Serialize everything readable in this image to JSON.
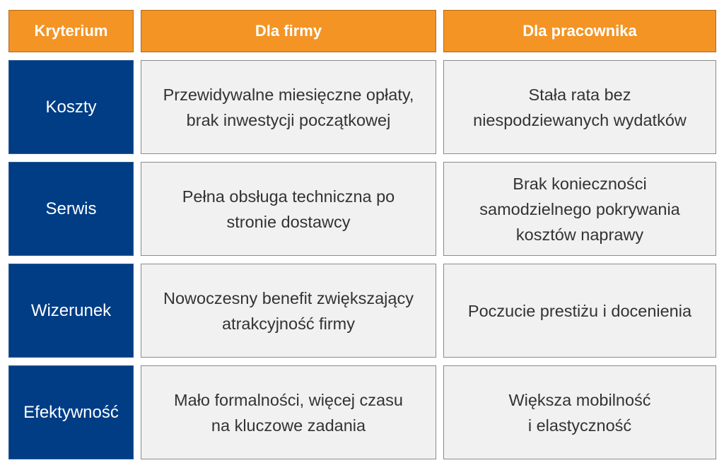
{
  "table": {
    "headers": [
      "Kryterium",
      "Dla firmy",
      "Dla pracownika"
    ],
    "rows": [
      {
        "criterion": "Koszty",
        "company": "Przewidywalne miesięczne opłaty,\nbrak inwestycji początkowej",
        "employee": "Stała rata bez\nniespodziewanych wydatków"
      },
      {
        "criterion": "Serwis",
        "company": "Pełna obsługa techniczna po\nstronie dostawcy",
        "employee": "Brak konieczności\nsamodzielnego pokrywania\nkosztów naprawy"
      },
      {
        "criterion": "Wizerunek",
        "company": "Nowoczesny benefit zwiększający\natrakcyjność firmy",
        "employee": "Poczucie prestiżu i docenienia"
      },
      {
        "criterion": "Efektywność",
        "company": "Mało formalności, więcej czasu\nna kluczowe zadania",
        "employee": "Większa mobilność\ni elastyczność"
      }
    ]
  },
  "colors": {
    "header_bg": "#f39425",
    "criterion_bg": "#003d85",
    "value_bg": "#f1f1f1",
    "value_text": "#333333"
  }
}
